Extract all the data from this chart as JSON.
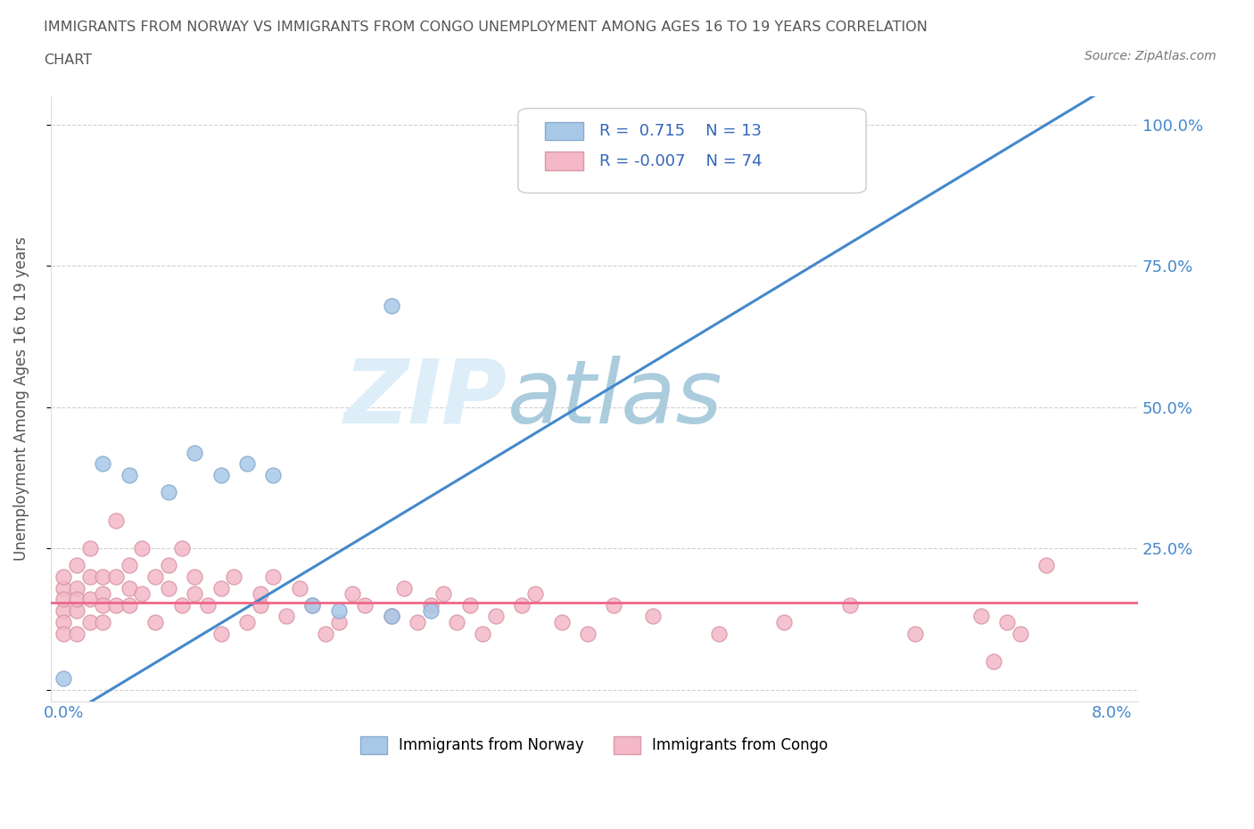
{
  "title_line1": "IMMIGRANTS FROM NORWAY VS IMMIGRANTS FROM CONGO UNEMPLOYMENT AMONG AGES 16 TO 19 YEARS CORRELATION",
  "title_line2": "CHART",
  "source_text": "Source: ZipAtlas.com",
  "ylabel": "Unemployment Among Ages 16 to 19 years",
  "xmin": 0.0,
  "xmax": 0.08,
  "ymin": -0.02,
  "ymax": 1.05,
  "yticks": [
    0.0,
    0.25,
    0.5,
    0.75,
    1.0
  ],
  "ytick_labels": [
    "",
    "25.0%",
    "50.0%",
    "75.0%",
    "100.0%"
  ],
  "norway_R": 0.715,
  "norway_N": 13,
  "congo_R": -0.007,
  "congo_N": 74,
  "norway_color": "#A8C8E8",
  "congo_color": "#F4B8C8",
  "norway_edge": "#88AACE",
  "congo_edge": "#D898A8",
  "trendline_norway_color": "#4488CC",
  "trendline_congo_color": "#EE6688",
  "background_color": "#FFFFFF",
  "watermark_color": "#CCDDE8",
  "legend_color": "#3366BB",
  "norway_x": [
    0.0,
    0.003,
    0.005,
    0.008,
    0.01,
    0.012,
    0.014,
    0.016,
    0.019,
    0.021,
    0.025,
    0.028,
    0.025
  ],
  "norway_y": [
    0.02,
    0.4,
    0.38,
    0.35,
    0.42,
    0.38,
    0.4,
    0.38,
    0.15,
    0.14,
    0.68,
    0.14,
    0.13
  ],
  "congo_x": [
    0.0,
    0.0,
    0.0,
    0.0,
    0.0,
    0.0,
    0.001,
    0.001,
    0.001,
    0.001,
    0.001,
    0.002,
    0.002,
    0.002,
    0.002,
    0.003,
    0.003,
    0.003,
    0.003,
    0.004,
    0.004,
    0.004,
    0.005,
    0.005,
    0.005,
    0.006,
    0.006,
    0.007,
    0.007,
    0.008,
    0.008,
    0.009,
    0.009,
    0.01,
    0.01,
    0.011,
    0.012,
    0.012,
    0.013,
    0.014,
    0.015,
    0.015,
    0.016,
    0.017,
    0.018,
    0.019,
    0.02,
    0.021,
    0.022,
    0.023,
    0.025,
    0.026,
    0.027,
    0.028,
    0.029,
    0.03,
    0.031,
    0.032,
    0.033,
    0.035,
    0.036,
    0.038,
    0.04,
    0.042,
    0.045,
    0.05,
    0.055,
    0.06,
    0.065,
    0.07,
    0.071,
    0.072,
    0.073,
    0.075
  ],
  "congo_y": [
    0.18,
    0.14,
    0.12,
    0.2,
    0.1,
    0.16,
    0.18,
    0.22,
    0.14,
    0.16,
    0.1,
    0.16,
    0.25,
    0.2,
    0.12,
    0.17,
    0.15,
    0.12,
    0.2,
    0.3,
    0.2,
    0.15,
    0.18,
    0.15,
    0.22,
    0.25,
    0.17,
    0.2,
    0.12,
    0.18,
    0.22,
    0.25,
    0.15,
    0.2,
    0.17,
    0.15,
    0.1,
    0.18,
    0.2,
    0.12,
    0.15,
    0.17,
    0.2,
    0.13,
    0.18,
    0.15,
    0.1,
    0.12,
    0.17,
    0.15,
    0.13,
    0.18,
    0.12,
    0.15,
    0.17,
    0.12,
    0.15,
    0.1,
    0.13,
    0.15,
    0.17,
    0.12,
    0.1,
    0.15,
    0.13,
    0.1,
    0.12,
    0.15,
    0.1,
    0.13,
    0.05,
    0.12,
    0.1,
    0.22
  ]
}
